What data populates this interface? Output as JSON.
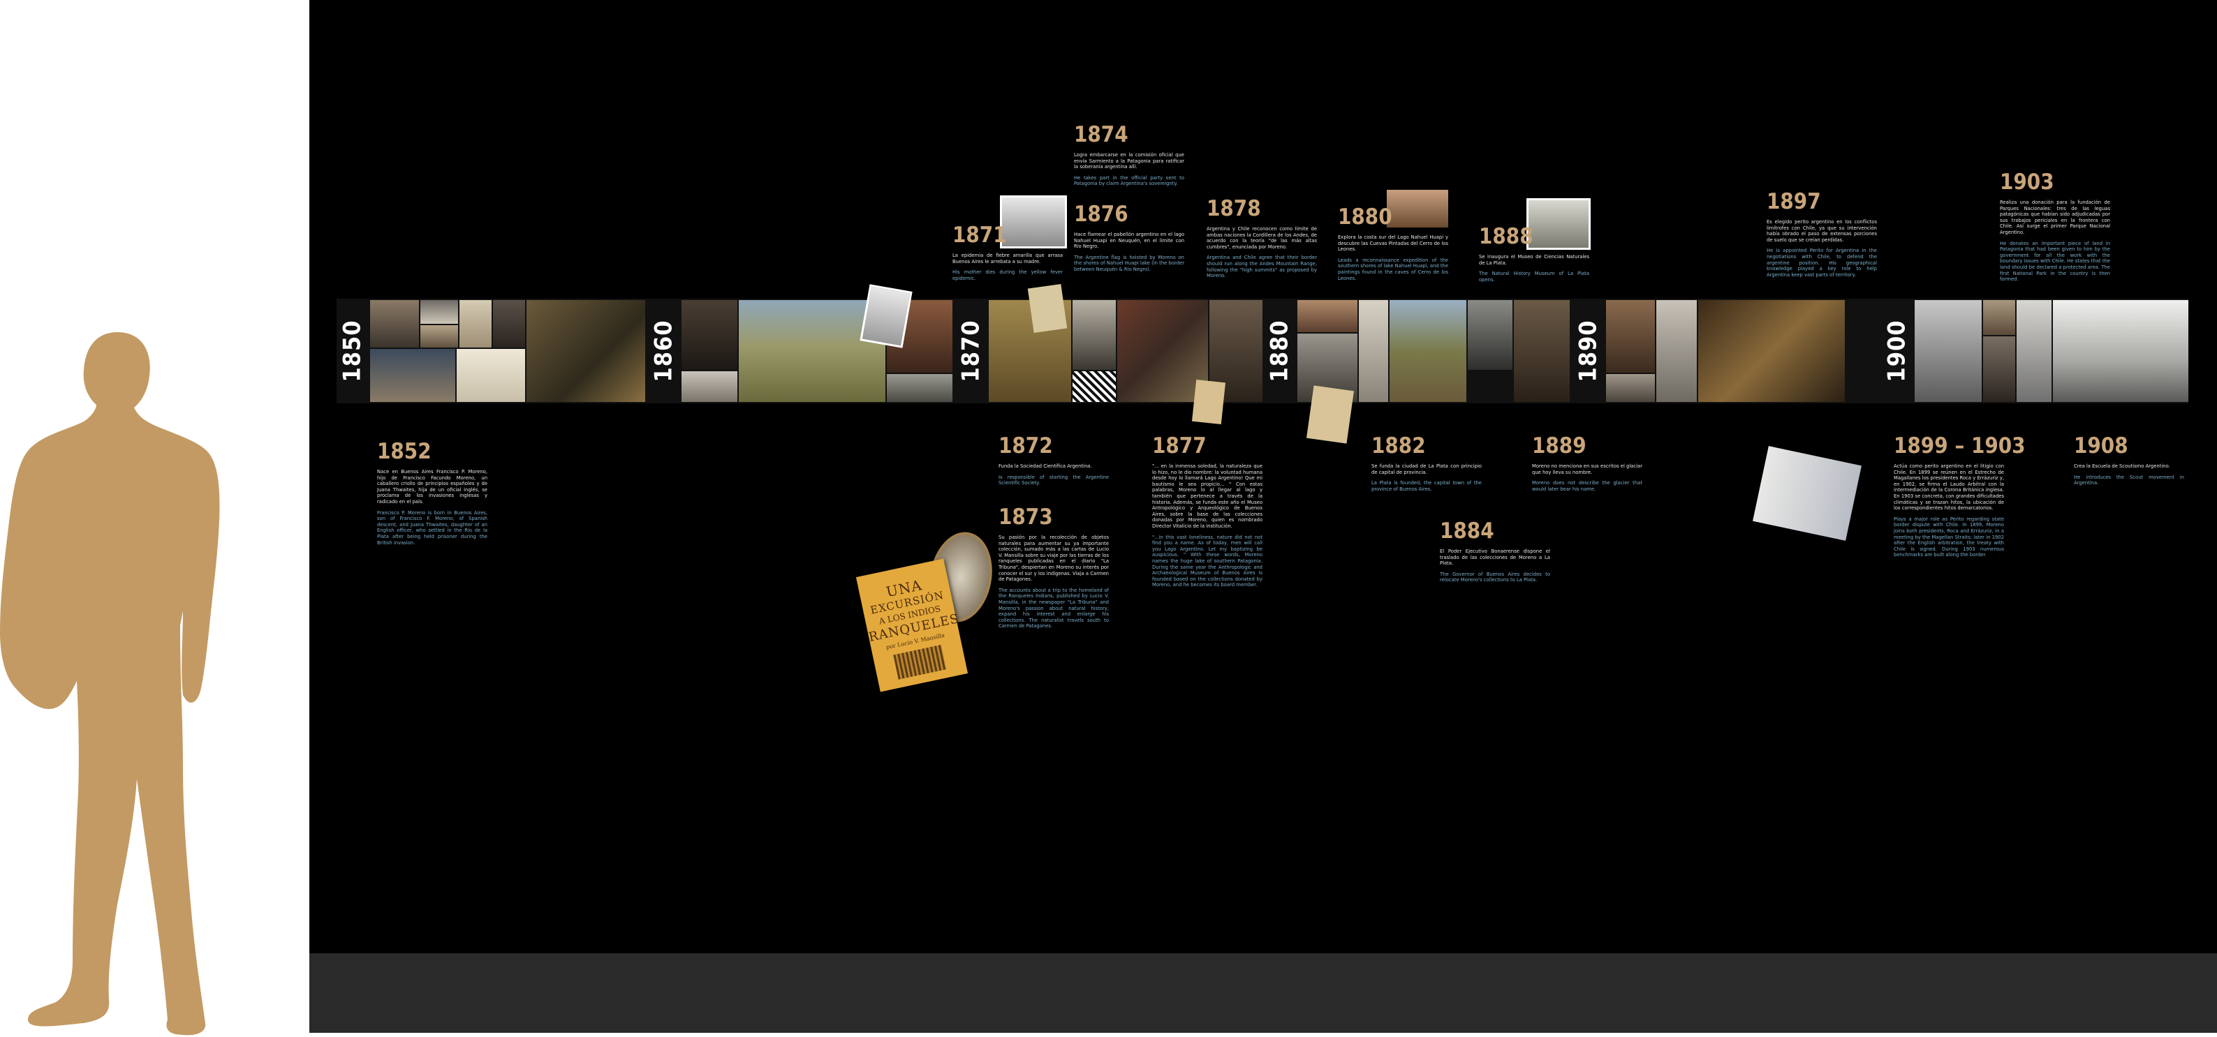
{
  "colors": {
    "wall": "#000000",
    "floor": "#2a2a2a",
    "year": "#c9a57a",
    "english_text": "#7fb0cc",
    "spanish_text": "#e8e8e8",
    "silhouette": "#c39a63"
  },
  "decades": [
    "1850",
    "1860",
    "1870",
    "1880",
    "1890",
    "1900"
  ],
  "events": [
    {
      "year": "1852",
      "es": "Nace en Buenos Aires Francisco P. Moreno, hijo de Francisco Facundo Moreno, un caballero criollo de principios españoles y de Juana Thwaites, hija de un oficial inglés, se proclama de los invasiones inglesas y radicado en el país.",
      "en": "Francisco P. Moreno is born in Buenos Aires, son of Francisco F. Moreno, of Spanish descent, and Juana Thwaites, daughter of an English officer, who settled in the Río de la Plata after being held prisoner during the British invasion."
    },
    {
      "year": "1871",
      "es": "La epidemia de fiebre amarilla que arrasa Buenos Aires le arrebata a su madre.",
      "en": "His mother dies during the yellow fever epidemic."
    },
    {
      "year": "1872",
      "es": "Funda la Sociedad Científica Argentina.",
      "en": "Is responsible of starting the Argentine Scientific Society."
    },
    {
      "year": "1873",
      "es": "Su pasión por la recolección de objetos naturales para aumentar su ya importante colección, sumado más a las cartas de Lucio V. Mansilla sobre su viaje por las tierras de los ranqueles publicadas en el diario \"La Tribuna\", despiertan en Moreno su interés por conocer el sur y los indígenas. Viaja a Carmen de Patagones.",
      "en": "The accounts about a trip to the homeland of the Ranqueles Indians, published by Lucio V. Mansilla, in the newspaper \"La Tribuna\" and Moreno's passion about natural history, expand his interest and enlarge his collections. The naturalist travels south to Carmen de Patagones."
    },
    {
      "year": "1874",
      "es": "Logra embarcarse en la comisión oficial que envía Sarmiento a la Patagonia para ratificar la soberanía argentina allí.",
      "en": "He takes part in the official party sent to Patagonia by claim Argentina's sovereignty."
    },
    {
      "year": "1876",
      "es": "Hace flamear el pabellón argentino en el lago Nahuel Huapi en Neuquén, en el límite con Río Negro.",
      "en": "The Argentine flag is hoisted by Moreno on the shores of Nahuel Huapi lake (in the border between Neuquén & Río Negro)."
    },
    {
      "year": "1877",
      "es": "\"... en la inmensa soledad, la naturaleza que lo hizo, no le dio nombre: la voluntad humana desde hoy lo llamará Lago Argentino! Que mi bautismo le sea propicio... \" Con estas palabras, Moreno lo al llegar al lago y también que pertenece a través de la historia. Además, se funda este año el Museo Antropológico y Arqueológico de Buenos Aires, sobre la base de las colecciones donadas por Moreno, quien es nombrado Director Vitalicio de la institución.",
      "en": "\"...in this vast loneliness, nature did not not find you a name. As of today, men will call you Lago Argentino. Let my baptizing be auspicious. \" With these words, Moreno names the huge lake of southern Patagonia. During the same year the Anthropologic and Archaeological Museum of Buenos Aires is founded based on the collections donated by Moreno, and he becomes its board member."
    },
    {
      "year": "1878",
      "es": "Argentina y Chile reconocen como límite de ambas naciones la Cordillera de los Andes, de acuerdo con la teoría \"de las más altas cumbres\", enunciada por Moreno.",
      "en": "Argentina and Chile agree that their border should run along the Andes Mountain Range, following the \"high summits\" as proposed by Moreno."
    },
    {
      "year": "1880",
      "es": "Explora la costa sur del Lago Nahuel Huapi y descubre las Cuevas Pintadas del Cerro de los Leones.",
      "en": "Leads a reconnaissance expedition of the southern shores of lake Nahuel Huapi, and the paintings found in the caves of Cerro de los Leones."
    },
    {
      "year": "1882",
      "es": "Se funda la ciudad de La Plata con principio de capital de provincia.",
      "en": "La Plata is founded, the capital town of the province of Buenos Aires."
    },
    {
      "year": "1884",
      "es": "El Poder Ejecutivo Bonaerense dispone el traslado de las colecciones de Moreno a La Plata.",
      "en": "The Governor of Buenos Aires decides to relocate Moreno's collections to La Plata."
    },
    {
      "year": "1888",
      "es": "Se inaugura el Museo de Ciencias Naturales de La Plata.",
      "en": "The Natural History Museum of La Plata opens."
    },
    {
      "year": "1889",
      "es": "Moreno no menciona en sus escritos el glaciar que hoy lleva su nombre.",
      "en": "Moreno does not describe the glacier that would later bear his name."
    },
    {
      "year": "1897",
      "es": "Es elegido perito argentino en los conflictos limítrofes con Chile, ya que su intervención había obrado el paso de extensas porciones de suelo que se creían perdidas.",
      "en": "He is appointed Perito for Argentina in the negotiations with Chile, to defend the argentine position. His geographical knowledge played a key role to help Argentina keep vast parts of territory."
    },
    {
      "year": "1899 – 1903",
      "es": "Actúa como perito argentino en el litigio con Chile. En 1899 se reúnen en el Estrecho de Magallanes los presidentes Roca y Errázuriz y, en 1902, se firma el Laudo Arbitral con la intermediación de la Corona Británica inglesa. En 1903 se concreta, con grandes dificultades climáticas y se trazan hitos, la ubicación de los correspondientes hitos demarcatorios.",
      "en": "Plays a major role as Perito regarding state border dispute with Chile. In 1899, Moreno joins both presidents, Roca and Errázuriz, in a meeting by the Magellan Straits; later in 1902 after the English arbitration, the treaty with Chile is signed. During 1903 numerous benchmarks are built along the border."
    },
    {
      "year": "1903",
      "es": "Realiza una donación para la fundación de Parques Nacionales: tres de las leguas patagónicas que habían sido adjudicadas por sus trabajos periciales en la frontera con Chile. Así surge el primer Parque Nacional Argentino.",
      "en": "He donates an important piece of land in Patagonia that had been given to him by the government for all the work with the boundary issues with Chile. He states that the land should be declared a protected area. The first National Park in the country is then formed."
    },
    {
      "year": "1908",
      "es": "Crea la Escuela de Scoutismo Argentino.",
      "en": "He introduces the Scout movement in Argentina."
    }
  ],
  "book_cover": {
    "line1": "UNA",
    "line2": "EXCURSIÓN",
    "line3": "A LOS INDIOS",
    "line4": "RANQUELES",
    "line5": "por Lucio V. Mansilla"
  }
}
